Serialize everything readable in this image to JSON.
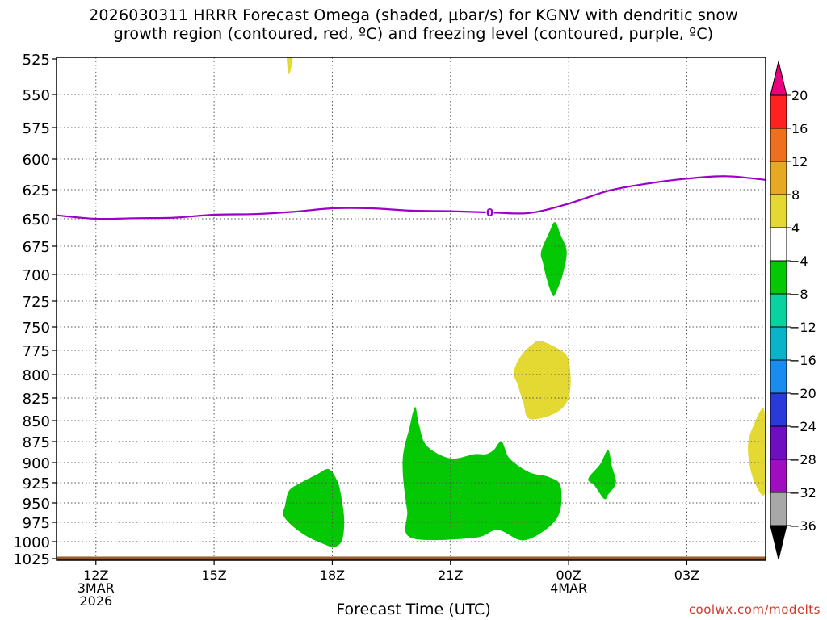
{
  "title_lines": [
    "2026030311 HRRR Forecast Omega (shaded, µbar/s) for KGNV with dendritic snow",
    "growth region (contoured, red, ºC) and freezing level (contoured, purple, ºC)"
  ],
  "credit": "coolwx.com/modelts",
  "chart_data": {
    "type": "heatmap",
    "xlabel": "Forecast Time (UTC)",
    "ylabel": "",
    "y_axis": {
      "ticks": [
        525,
        550,
        575,
        600,
        625,
        650,
        675,
        700,
        725,
        750,
        775,
        800,
        825,
        850,
        875,
        900,
        925,
        950,
        975,
        1000,
        1025
      ],
      "unit": "hPa",
      "inverted": true
    },
    "x_axis": {
      "range_hours_from_start": [
        0,
        18
      ],
      "ticks": [
        {
          "hour": 1,
          "labels": [
            "12Z",
            "3MAR",
            "2026"
          ]
        },
        {
          "hour": 4,
          "labels": [
            "15Z"
          ]
        },
        {
          "hour": 7,
          "labels": [
            "18Z"
          ]
        },
        {
          "hour": 10,
          "labels": [
            "21Z"
          ]
        },
        {
          "hour": 13,
          "labels": [
            "00Z",
            "4MAR"
          ]
        },
        {
          "hour": 16,
          "labels": [
            "03Z"
          ]
        }
      ]
    },
    "grid": true,
    "colorbar": {
      "labels": [
        "20",
        "16",
        "12",
        "8",
        "4",
        "-4",
        "-8",
        "-12",
        "-16",
        "-20",
        "-24",
        "-28",
        "-32",
        "-36"
      ],
      "bins": [
        {
          "color": "#e8007d"
        },
        {
          "color": "#ff2020"
        },
        {
          "color": "#ee6f1e"
        },
        {
          "color": "#e8a922"
        },
        {
          "color": "#e4d832"
        },
        {
          "color": "#ffffff"
        },
        {
          "color": "#05c805"
        },
        {
          "color": "#0ad29f"
        },
        {
          "color": "#0bb3c9"
        },
        {
          "color": "#1a8bef"
        },
        {
          "color": "#2a39d9"
        },
        {
          "color": "#6e0ec0"
        },
        {
          "color": "#a00cc0"
        },
        {
          "color": "#a8a8a8"
        },
        {
          "color": "#000000"
        }
      ]
    },
    "freezing_level": {
      "label": "0",
      "color": "#9b00c8",
      "points": [
        [
          0,
          647
        ],
        [
          1,
          650
        ],
        [
          2,
          649.5
        ],
        [
          3,
          649
        ],
        [
          4,
          646.5
        ],
        [
          5,
          646
        ],
        [
          6,
          644
        ],
        [
          7,
          641
        ],
        [
          8,
          641
        ],
        [
          9,
          643
        ],
        [
          10,
          643.5
        ],
        [
          11,
          644.5
        ],
        [
          12,
          645
        ],
        [
          13,
          637
        ],
        [
          14,
          626
        ],
        [
          15,
          620
        ],
        [
          16,
          616
        ],
        [
          17,
          614
        ],
        [
          18,
          617
        ]
      ]
    },
    "shaded_regions": [
      {
        "value_range": [
          -8,
          -4
        ],
        "color": "#05c805",
        "points": [
          [
            5.8,
            954
          ],
          [
            5.9,
            935
          ],
          [
            6.2,
            925
          ],
          [
            6.6,
            915
          ],
          [
            6.9,
            908
          ],
          [
            7.1,
            920
          ],
          [
            7.2,
            935
          ],
          [
            7.3,
            970
          ],
          [
            7.25,
            998
          ],
          [
            7.05,
            1008
          ],
          [
            6.8,
            1004
          ],
          [
            6.35,
            993
          ],
          [
            5.95,
            978
          ],
          [
            5.75,
            965
          ]
        ]
      },
      {
        "value_range": [
          -8,
          -4
        ],
        "color": "#05c805",
        "points": [
          [
            8.8,
            920
          ],
          [
            8.9,
            960
          ],
          [
            9.0,
            995
          ],
          [
            10.6,
            995
          ],
          [
            11.2,
            985
          ],
          [
            11.9,
            998
          ],
          [
            12.7,
            970
          ],
          [
            12.8,
            930
          ],
          [
            12.5,
            918
          ],
          [
            12.0,
            912
          ],
          [
            11.5,
            895
          ],
          [
            11.3,
            875
          ],
          [
            11.1,
            885
          ],
          [
            10.9,
            890
          ],
          [
            10.6,
            890
          ],
          [
            10.0,
            895
          ],
          [
            9.4,
            880
          ],
          [
            9.2,
            855
          ],
          [
            9.1,
            835
          ],
          [
            8.95,
            860
          ],
          [
            8.8,
            890
          ]
        ]
      },
      {
        "value_range": [
          -8,
          -4
        ],
        "color": "#05c805",
        "points": [
          [
            12.3,
            680
          ],
          [
            12.5,
            663
          ],
          [
            12.65,
            653
          ],
          [
            12.8,
            665
          ],
          [
            12.95,
            680
          ],
          [
            12.85,
            700
          ],
          [
            12.7,
            715
          ],
          [
            12.6,
            720
          ],
          [
            12.45,
            705
          ],
          [
            12.35,
            690
          ]
        ]
      },
      {
        "value_range": [
          -8,
          -4
        ],
        "color": "#05c805",
        "points": [
          [
            13.5,
            920
          ],
          [
            13.8,
            902
          ],
          [
            14.0,
            885
          ],
          [
            14.1,
            905
          ],
          [
            14.2,
            925
          ],
          [
            14.0,
            940
          ],
          [
            13.9,
            945
          ],
          [
            13.65,
            928
          ]
        ]
      },
      {
        "value_range": [
          4,
          8
        ],
        "color": "#e4d832",
        "points": [
          [
            11.6,
            798
          ],
          [
            11.8,
            780
          ],
          [
            12.1,
            768
          ],
          [
            12.3,
            765
          ],
          [
            12.8,
            775
          ],
          [
            13.0,
            785
          ],
          [
            13.05,
            810
          ],
          [
            12.95,
            830
          ],
          [
            12.6,
            843
          ],
          [
            12.0,
            848
          ],
          [
            11.85,
            830
          ],
          [
            11.7,
            810
          ]
        ]
      },
      {
        "value_range": [
          4,
          8
        ],
        "color": "#e4d832",
        "points": [
          [
            18.0,
            880
          ],
          [
            18.0,
            930
          ],
          [
            17.9,
            940
          ],
          [
            17.65,
            915
          ],
          [
            17.55,
            880
          ],
          [
            17.7,
            855
          ],
          [
            17.95,
            837
          ]
        ]
      },
      {
        "value_range": [
          4,
          8
        ],
        "color": "#e4d832",
        "points": [
          [
            5.85,
            520
          ],
          [
            6.0,
            520
          ],
          [
            5.95,
            532
          ],
          [
            5.88,
            535
          ]
        ]
      }
    ],
    "ground_band": {
      "color": "#9c5a2a",
      "from_hPa": 1022,
      "to_hPa": 1028
    }
  }
}
